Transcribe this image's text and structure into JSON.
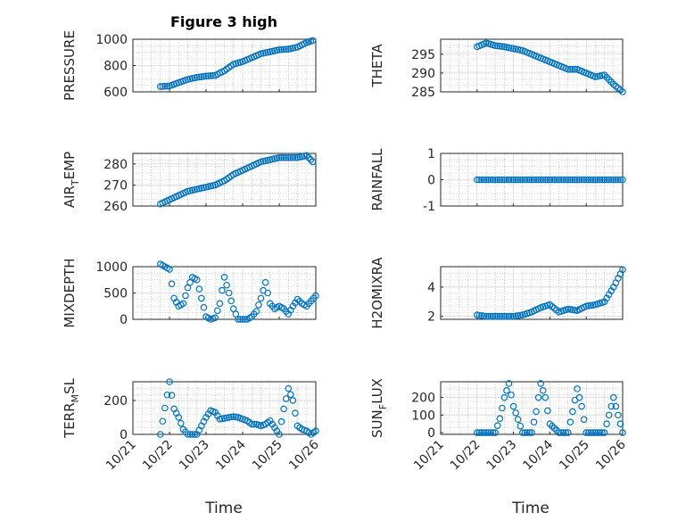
{
  "title": "Figure 3 high",
  "colors": {
    "series": "#0072BD",
    "axis": "#262626",
    "background": "#ffffff"
  },
  "time_ticks": [
    "10/21",
    "10/22",
    "10/23",
    "10/24",
    "10/25",
    "10/26"
  ],
  "xlabel": "Time",
  "chart_data": [
    {
      "type": "scatter",
      "ylabel": "PRESSURE",
      "grid": true,
      "ylim": [
        600,
        1000
      ],
      "yticks": [
        600,
        800,
        1000
      ],
      "x": [
        "10/21 18:00",
        "10/22 00:00",
        "10/22 06:00",
        "10/22 12:00",
        "10/22 18:00",
        "10/23 00:00",
        "10/23 06:00",
        "10/23 12:00",
        "10/23 18:00",
        "10/24 00:00",
        "10/24 06:00",
        "10/24 12:00",
        "10/24 18:00",
        "10/25 00:00",
        "10/25 06:00",
        "10/25 12:00",
        "10/25 18:00",
        "10/25 22:00"
      ],
      "y": [
        640,
        645,
        670,
        695,
        710,
        720,
        725,
        760,
        810,
        830,
        860,
        890,
        905,
        920,
        925,
        940,
        975,
        990
      ]
    },
    {
      "type": "scatter",
      "ylabel": "THETA",
      "grid": true,
      "ylim": [
        285,
        299
      ],
      "yticks": [
        285,
        290,
        295
      ],
      "x": [
        "10/22 00:00",
        "10/22 06:00",
        "10/22 12:00",
        "10/22 18:00",
        "10/23 00:00",
        "10/23 06:00",
        "10/23 12:00",
        "10/23 18:00",
        "10/24 00:00",
        "10/24 06:00",
        "10/24 12:00",
        "10/24 18:00",
        "10/25 00:00",
        "10/25 06:00",
        "10/25 12:00",
        "10/25 18:00",
        "10/26 00:00"
      ],
      "y": [
        297,
        298,
        297.3,
        297,
        296.5,
        296,
        295,
        294,
        293,
        292,
        291,
        291,
        290,
        289,
        289.5,
        287,
        285
      ]
    },
    {
      "type": "scatter",
      "ylabel": "AIR_TEMP",
      "grid": true,
      "ylim": [
        260,
        285
      ],
      "yticks": [
        260,
        270,
        280
      ],
      "x": [
        "10/21 18:00",
        "10/22 00:00",
        "10/22 06:00",
        "10/22 12:00",
        "10/22 18:00",
        "10/23 00:00",
        "10/23 06:00",
        "10/23 12:00",
        "10/23 18:00",
        "10/24 00:00",
        "10/24 06:00",
        "10/24 12:00",
        "10/24 18:00",
        "10/25 00:00",
        "10/25 06:00",
        "10/25 12:00",
        "10/25 18:00",
        "10/25 22:00"
      ],
      "y": [
        261,
        263,
        265,
        267,
        268,
        269,
        270,
        272,
        275,
        277,
        279,
        281,
        282,
        283,
        283,
        283,
        284,
        281
      ]
    },
    {
      "type": "scatter",
      "ylabel": "RAINFALL",
      "grid": true,
      "ylim": [
        -1,
        1
      ],
      "yticks": [
        -1,
        0,
        1
      ],
      "x": [
        "10/22 00:00",
        "10/22 06:00",
        "10/22 12:00",
        "10/22 18:00",
        "10/23 00:00",
        "10/23 06:00",
        "10/23 12:00",
        "10/23 18:00",
        "10/24 00:00",
        "10/24 06:00",
        "10/24 12:00",
        "10/24 18:00",
        "10/25 00:00",
        "10/25 06:00",
        "10/25 12:00",
        "10/25 18:00",
        "10/26 00:00"
      ],
      "y": [
        0,
        0,
        0,
        0,
        0,
        0,
        0,
        0,
        0,
        0,
        0,
        0,
        0,
        0,
        0,
        0,
        0
      ]
    },
    {
      "type": "scatter",
      "ylabel": "MIXDEPTH",
      "grid": true,
      "ylim": [
        0,
        1000
      ],
      "yticks": [
        0,
        500,
        1000
      ],
      "x": [
        "10/21 18:00",
        "10/22 00:00",
        "10/22 03:00",
        "10/22 06:00",
        "10/22 09:00",
        "10/22 12:00",
        "10/22 15:00",
        "10/22 18:00",
        "10/22 21:00",
        "10/23 00:00",
        "10/23 03:00",
        "10/23 06:00",
        "10/23 09:00",
        "10/23 12:00",
        "10/23 15:00",
        "10/23 18:00",
        "10/23 21:00",
        "10/24 00:00",
        "10/24 03:00",
        "10/24 06:00",
        "10/24 09:00",
        "10/24 12:00",
        "10/24 15:00",
        "10/24 18:00",
        "10/24 21:00",
        "10/25 00:00",
        "10/25 03:00",
        "10/25 06:00",
        "10/25 09:00",
        "10/25 12:00",
        "10/25 15:00",
        "10/25 18:00",
        "10/25 21:00",
        "10/26 00:00"
      ],
      "y": [
        1050,
        950,
        400,
        250,
        300,
        600,
        800,
        750,
        400,
        50,
        0,
        30,
        300,
        800,
        500,
        200,
        0,
        0,
        0,
        50,
        150,
        400,
        700,
        300,
        200,
        250,
        200,
        100,
        250,
        380,
        300,
        250,
        350,
        450
      ]
    },
    {
      "type": "scatter",
      "ylabel": "H2OMIXRA",
      "grid": true,
      "ylim": [
        1.8,
        5.4
      ],
      "yticks": [
        2,
        4
      ],
      "x": [
        "10/22 00:00",
        "10/22 06:00",
        "10/22 12:00",
        "10/22 18:00",
        "10/23 00:00",
        "10/23 06:00",
        "10/23 12:00",
        "10/23 18:00",
        "10/24 00:00",
        "10/24 06:00",
        "10/24 12:00",
        "10/24 18:00",
        "10/25 00:00",
        "10/25 06:00",
        "10/25 12:00",
        "10/25 18:00",
        "10/26 00:00"
      ],
      "y": [
        2.1,
        2,
        2,
        2,
        2,
        2.1,
        2.3,
        2.6,
        2.8,
        2.3,
        2.5,
        2.4,
        2.7,
        2.8,
        3,
        4,
        5.2
      ]
    },
    {
      "type": "scatter",
      "ylabel": "TERR_MSL",
      "grid": true,
      "ylim": [
        0,
        310
      ],
      "yticks": [
        0,
        200
      ],
      "x": [
        "10/21 18:00",
        "10/22 00:00",
        "10/22 03:00",
        "10/22 06:00",
        "10/22 09:00",
        "10/22 12:00",
        "10/22 15:00",
        "10/22 18:00",
        "10/22 21:00",
        "10/23 00:00",
        "10/23 03:00",
        "10/23 06:00",
        "10/23 09:00",
        "10/23 12:00",
        "10/23 15:00",
        "10/23 18:00",
        "10/23 21:00",
        "10/24 00:00",
        "10/24 03:00",
        "10/24 06:00",
        "10/24 09:00",
        "10/24 12:00",
        "10/24 15:00",
        "10/24 18:00",
        "10/24 21:00",
        "10/25 00:00",
        "10/25 03:00",
        "10/25 06:00",
        "10/25 09:00",
        "10/25 12:00",
        "10/25 15:00",
        "10/25 18:00",
        "10/25 21:00",
        "10/26 00:00"
      ],
      "y": [
        0,
        310,
        150,
        100,
        30,
        0,
        0,
        0,
        50,
        100,
        140,
        130,
        90,
        95,
        100,
        105,
        100,
        90,
        80,
        60,
        60,
        50,
        60,
        80,
        40,
        0,
        150,
        270,
        200,
        50,
        30,
        20,
        0,
        20
      ]
    },
    {
      "type": "scatter",
      "ylabel": "SUN_FLUX",
      "grid": true,
      "ylim": [
        -10,
        290
      ],
      "yticks": [
        0,
        100,
        200
      ],
      "x": [
        "10/22 00:00",
        "10/22 06:00",
        "10/22 12:00",
        "10/22 15:00",
        "10/22 18:00",
        "10/22 21:00",
        "10/23 00:00",
        "10/23 06:00",
        "10/23 12:00",
        "10/23 15:00",
        "10/23 18:00",
        "10/23 21:00",
        "10/24 00:00",
        "10/24 06:00",
        "10/24 12:00",
        "10/24 15:00",
        "10/24 18:00",
        "10/24 21:00",
        "10/25 00:00",
        "10/25 06:00",
        "10/25 12:00",
        "10/25 15:00",
        "10/25 18:00",
        "10/25 21:00",
        "10/26 00:00"
      ],
      "y": [
        0,
        0,
        0,
        80,
        200,
        280,
        150,
        0,
        0,
        120,
        280,
        200,
        50,
        0,
        0,
        120,
        250,
        150,
        0,
        0,
        0,
        100,
        200,
        100,
        0
      ]
    }
  ]
}
